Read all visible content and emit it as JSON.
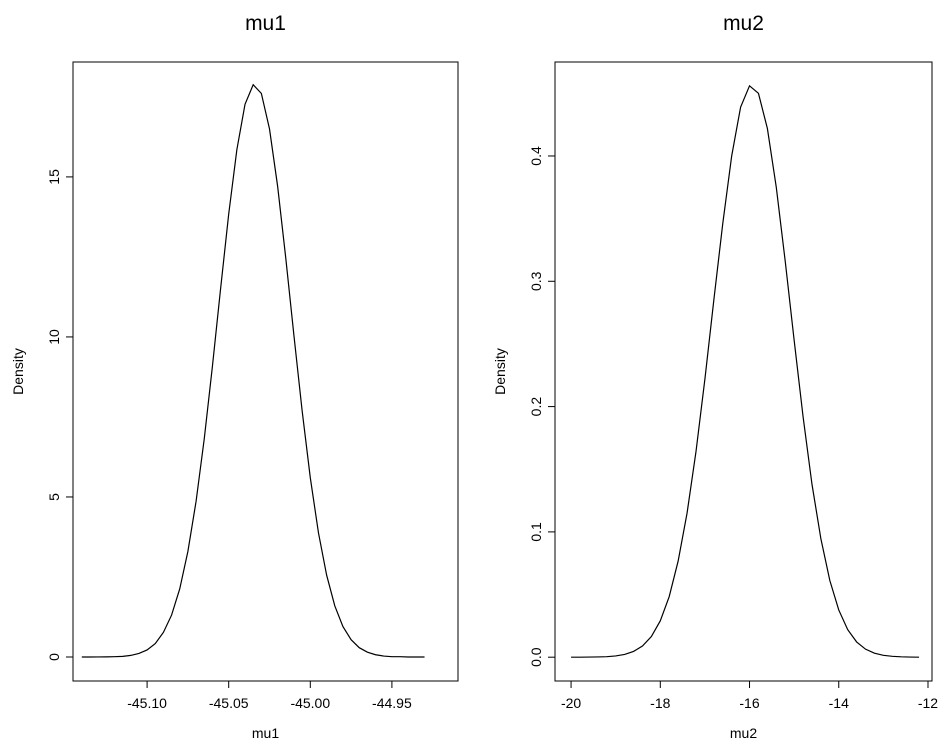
{
  "chart_data": [
    {
      "type": "line",
      "title": "mu1",
      "x_label": "mu1",
      "y_label": "Density",
      "color": "#000000",
      "x": [
        -45.14,
        -45.135,
        -45.13,
        -45.125,
        -45.12,
        -45.115,
        -45.11,
        -45.105,
        -45.1,
        -45.095,
        -45.09,
        -45.085,
        -45.08,
        -45.075,
        -45.07,
        -45.065,
        -45.06,
        -45.055,
        -45.05,
        -45.045,
        -45.04,
        -45.035,
        -45.03,
        -45.025,
        -45.02,
        -45.015,
        -45.01,
        -45.005,
        -45.0,
        -44.995,
        -44.99,
        -44.985,
        -44.98,
        -44.975,
        -44.97,
        -44.965,
        -44.96,
        -44.955,
        -44.95,
        -44.945,
        -44.94,
        -44.935,
        -44.93
      ],
      "values": [
        0.0,
        0.0,
        0.002,
        0.004,
        0.01,
        0.02,
        0.05,
        0.11,
        0.22,
        0.42,
        0.77,
        1.31,
        2.13,
        3.3,
        4.86,
        6.81,
        9.07,
        11.49,
        13.84,
        15.85,
        17.27,
        17.88,
        17.61,
        16.5,
        14.7,
        12.45,
        10.03,
        7.69,
        5.6,
        3.88,
        2.56,
        1.6,
        0.95,
        0.54,
        0.29,
        0.15,
        0.07,
        0.03,
        0.01,
        0.01,
        0.0,
        0.0,
        0.0
      ],
      "xlim": [
        -45.1454,
        -44.9095
      ],
      "ylim": [
        -0.75,
        18.59
      ],
      "xticks": [
        {
          "value": -45.1,
          "label": "-45.10"
        },
        -45.05,
        {
          "value": -45,
          "label": "-45.00"
        },
        -44.95
      ],
      "yticks": [
        0,
        5,
        10,
        15
      ]
    },
    {
      "type": "line",
      "title": "mu2",
      "x_label": "mu2",
      "y_label": "Density",
      "color": "#000000",
      "x": [
        -20,
        -19.8,
        -19.6,
        -19.4,
        -19.2,
        -19,
        -18.8,
        -18.6,
        -18.4,
        -18.2,
        -18,
        -17.8,
        -17.6,
        -17.4,
        -17.2,
        -17,
        -16.8,
        -16.6,
        -16.4,
        -16.2,
        -16,
        -15.8,
        -15.6,
        -15.4,
        -15.2,
        -15,
        -14.8,
        -14.6,
        -14.4,
        -14.2,
        -14,
        -13.8,
        -13.6,
        -13.4,
        -13.2,
        -13,
        -12.8,
        -12.6,
        -12.4,
        -12.2
      ],
      "values": [
        0.0,
        0.0,
        0.0001,
        0.0002,
        0.0004,
        0.001,
        0.0022,
        0.0046,
        0.0089,
        0.0165,
        0.029,
        0.0484,
        0.0767,
        0.115,
        0.164,
        0.222,
        0.285,
        0.346,
        0.4,
        0.439,
        0.456,
        0.45,
        0.422,
        0.375,
        0.316,
        0.253,
        0.192,
        0.138,
        0.0944,
        0.0612,
        0.0377,
        0.022,
        0.0122,
        0.0064,
        0.0032,
        0.0015,
        0.0007,
        0.0003,
        0.0001,
        0.0
      ],
      "xlim": [
        -20.36,
        -11.91
      ],
      "ylim": [
        -0.019,
        0.475
      ],
      "xticks": [
        -20,
        -18,
        -16,
        -14,
        -12
      ],
      "yticks": [
        {
          "value": 0,
          "label": "0.0"
        },
        0.1,
        0.2,
        0.3,
        0.4
      ]
    }
  ]
}
